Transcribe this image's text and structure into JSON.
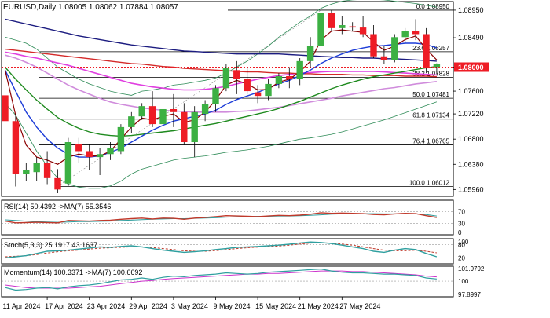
{
  "chart_data": {
    "type": "candlestick",
    "symbol": "EURUSD",
    "timeframe": "Daily",
    "header_text": "EURUSD,Daily  1.08005 1.08062 1.07884 1.08057",
    "candles": [
      [
        1.0753,
        1.0768,
        1.069,
        1.071
      ],
      [
        1.071,
        1.0722,
        1.0601,
        1.0622
      ],
      [
        1.0622,
        1.064,
        1.061,
        1.0628
      ],
      [
        1.0625,
        1.065,
        1.061,
        1.064
      ],
      [
        1.064,
        1.066,
        1.0605,
        1.0615
      ],
      [
        1.0615,
        1.063,
        1.059,
        1.0596
      ],
      [
        1.0606,
        1.0682,
        1.0601,
        1.0675
      ],
      [
        1.0672,
        1.0682,
        1.064,
        1.066
      ],
      [
        1.066,
        1.0672,
        1.0628,
        1.065
      ],
      [
        1.065,
        1.0665,
        1.062,
        1.0655
      ],
      [
        1.0655,
        1.0675,
        1.0645,
        1.0665
      ],
      [
        1.066,
        1.0705,
        1.0655,
        1.07
      ],
      [
        1.07,
        1.0725,
        1.069,
        1.0718
      ],
      [
        1.0718,
        1.074,
        1.0712,
        1.0735
      ],
      [
        1.0735,
        1.076,
        1.07,
        1.0705
      ],
      [
        1.0705,
        1.0735,
        1.0675,
        1.073
      ],
      [
        1.073,
        1.0755,
        1.07,
        1.0725
      ],
      [
        1.0725,
        1.074,
        1.067,
        1.0675
      ],
      [
        1.0675,
        1.0735,
        1.065,
        1.0725
      ],
      [
        1.0722,
        1.0745,
        1.071,
        1.0738
      ],
      [
        1.0738,
        1.077,
        1.0725,
        1.0765
      ],
      [
        1.0765,
        1.0805,
        1.076,
        1.0798
      ],
      [
        1.0795,
        1.081,
        1.0755,
        1.078
      ],
      [
        1.078,
        1.08,
        1.0755,
        1.076
      ],
      [
        1.0758,
        1.077,
        1.074,
        1.0752
      ],
      [
        1.0752,
        1.078,
        1.0745,
        1.0772
      ],
      [
        1.0772,
        1.079,
        1.0765,
        1.0785
      ],
      [
        1.0785,
        1.08,
        1.0765,
        1.078
      ],
      [
        1.078,
        1.0815,
        1.077,
        1.081
      ],
      [
        1.081,
        1.085,
        1.08,
        1.0835
      ],
      [
        1.0835,
        1.09,
        1.0825,
        1.089
      ],
      [
        1.089,
        1.0895,
        1.086,
        1.0865
      ],
      [
        1.0865,
        1.0885,
        1.0855,
        1.087
      ],
      [
        1.0868,
        1.0875,
        1.086,
        1.0866
      ],
      [
        1.0866,
        1.0885,
        1.085,
        1.0855
      ],
      [
        1.0855,
        1.087,
        1.0815,
        1.0818
      ],
      [
        1.0818,
        1.0835,
        1.0805,
        1.0812
      ],
      [
        1.0812,
        1.0855,
        1.0808,
        1.085
      ],
      [
        1.085,
        1.0865,
        1.084,
        1.086
      ],
      [
        1.086,
        1.088,
        1.0845,
        1.0855
      ],
      [
        1.0855,
        1.0865,
        1.079,
        1.0798
      ],
      [
        1.08005,
        1.08062,
        1.07884,
        1.08057
      ]
    ],
    "price_axis": [
      "1.08950",
      "1.08490",
      "1.08000",
      "1.07600",
      "1.07220",
      "1.06800",
      "1.06380",
      "1.05960"
    ],
    "current_price": "1.08000",
    "fib_levels": [
      {
        "label": "0.0 1.08950",
        "price": 1.0895
      },
      {
        "label": "23.6 1.08257",
        "price": 1.08257
      },
      {
        "label": "38.2 1.07828",
        "price": 1.07828
      },
      {
        "label": "50.0 1.07481",
        "price": 1.07481
      },
      {
        "label": "61.8 1.07134",
        "price": 1.07134
      },
      {
        "label": "76.4 1.06705",
        "price": 1.06705
      },
      {
        "label": "100.0 1.06012",
        "price": 1.06012
      }
    ],
    "date_labels": [
      {
        "label": "11 Apr 2024",
        "index": 0
      },
      {
        "label": "17 Apr 2024",
        "index": 4
      },
      {
        "label": "23 Apr 2024",
        "index": 8
      },
      {
        "label": "29 Apr 2024",
        "index": 12
      },
      {
        "label": "3 May 2024",
        "index": 16
      },
      {
        "label": "9 May 2024",
        "index": 20
      },
      {
        "label": "15 May 2024",
        "index": 24
      },
      {
        "label": "21 May 2024",
        "index": 28
      },
      {
        "label": "27 May 2024",
        "index": 32
      }
    ],
    "ma_lines": {
      "navy": [
        1.088,
        1.0876,
        1.0872,
        1.0868,
        1.0864,
        1.086,
        1.0856,
        1.0852,
        1.0849,
        1.0846,
        1.0843,
        1.084,
        1.0837,
        1.0835,
        1.0833,
        1.0831,
        1.0829,
        1.0827,
        1.0826,
        1.0825,
        1.0824,
        1.0823,
        1.0822,
        1.0822,
        1.0822,
        1.0822,
        1.0822,
        1.0821,
        1.082,
        1.0819,
        1.0818,
        1.0817,
        1.0816,
        1.0816,
        1.0815,
        1.0815,
        1.0814,
        1.0814,
        1.0813,
        1.0812,
        1.0811,
        1.081
      ],
      "red": [
        1.083,
        1.0828,
        1.0826,
        1.0824,
        1.0822,
        1.082,
        1.0818,
        1.0816,
        1.0814,
        1.0812,
        1.081,
        1.0808,
        1.0806,
        1.0805,
        1.0803,
        1.0801,
        1.08,
        1.0798,
        1.0797,
        1.0796,
        1.0795,
        1.0794,
        1.0793,
        1.0792,
        1.0792,
        1.0791,
        1.079,
        1.079,
        1.0789,
        1.0789,
        1.0788,
        1.0788,
        1.0788,
        1.0787,
        1.0787,
        1.0786,
        1.0786,
        1.0786,
        1.0785,
        1.0785,
        1.0785,
        1.0784
      ],
      "magenta": [
        1.0825,
        1.0822,
        1.0818,
        1.0815,
        1.0811,
        1.0807,
        1.0803,
        1.0798,
        1.0793,
        1.0788,
        1.0783,
        1.0778,
        1.0773,
        1.077,
        1.0767,
        1.0765,
        1.0763,
        1.0762,
        1.0762,
        1.0763,
        1.0765,
        1.0768,
        1.0772,
        1.0776,
        1.078,
        1.0783,
        1.0786,
        1.0788,
        1.079,
        1.0791,
        1.0792,
        1.0793,
        1.0793,
        1.0793,
        1.0793,
        1.0793,
        1.0792,
        1.0791,
        1.079,
        1.0789,
        1.0788,
        1.0787
      ],
      "violet": [
        1.082,
        1.0815,
        1.0808,
        1.08,
        1.079,
        1.078,
        1.077,
        1.0762,
        1.0755,
        1.0748,
        1.0742,
        1.0738,
        1.0735,
        1.0732,
        1.073,
        1.0728,
        1.0727,
        1.0726,
        1.0725,
        1.0725,
        1.0725,
        1.0725,
        1.0726,
        1.0727,
        1.0729,
        1.0731,
        1.0733,
        1.0736,
        1.0739,
        1.0742,
        1.0745,
        1.0748,
        1.0752,
        1.0755,
        1.0758,
        1.0761,
        1.0764,
        1.0766,
        1.0769,
        1.0772,
        1.0774,
        1.0776
      ],
      "green": [
        1.08,
        1.078,
        1.0762,
        1.0745,
        1.073,
        1.0716,
        1.0706,
        1.0698,
        1.0692,
        1.0688,
        1.0686,
        1.0685,
        1.0686,
        1.0688,
        1.069,
        1.0692,
        1.0694,
        1.0697,
        1.07,
        1.0703,
        1.0706,
        1.071,
        1.0714,
        1.0718,
        1.0722,
        1.0726,
        1.0731,
        1.0737,
        1.0743,
        1.075,
        1.0757,
        1.0764,
        1.077,
        1.0775,
        1.078,
        1.0784,
        1.0787,
        1.079,
        1.0793,
        1.0796,
        1.0799,
        1.0801
      ],
      "blue": [
        1.0795,
        1.076,
        1.0725,
        1.07,
        1.068,
        1.0665,
        1.0655,
        1.065,
        1.065,
        1.0652,
        1.0658,
        1.0665,
        1.0675,
        1.0685,
        1.0695,
        1.0703,
        1.071,
        1.0714,
        1.0718,
        1.0722,
        1.0728,
        1.0738,
        1.0746,
        1.0752,
        1.0758,
        1.0765,
        1.0772,
        1.0778,
        1.0786,
        1.0795,
        1.0806,
        1.0815,
        1.0822,
        1.0828,
        1.0832,
        1.0835,
        1.0836,
        1.0838,
        1.084,
        1.084,
        1.0838,
        1.0832
      ],
      "maroon": [
        1.0795,
        1.072,
        1.067,
        1.065,
        1.0645,
        1.0638,
        1.065,
        1.0655,
        1.0652,
        1.0652,
        1.066,
        1.068,
        1.07,
        1.0715,
        1.0712,
        1.0718,
        1.0722,
        1.0708,
        1.0712,
        1.0725,
        1.0745,
        1.077,
        1.0778,
        1.0772,
        1.0762,
        1.0763,
        1.0775,
        1.078,
        1.0792,
        1.081,
        1.0845,
        1.086,
        1.0862,
        1.086,
        1.0858,
        1.0842,
        1.0828,
        1.0835,
        1.0846,
        1.0852,
        1.083,
        1.0812
      ],
      "bb_upper": [
        1.085,
        1.0845,
        1.084,
        1.083,
        1.0815,
        1.08,
        1.079,
        1.078,
        1.0772,
        1.0766,
        1.076,
        1.0756,
        1.0753,
        1.076,
        1.0762,
        1.0765,
        1.077,
        1.0772,
        1.0775,
        1.0778,
        1.0782,
        1.079,
        1.08,
        1.081,
        1.0822,
        1.0835,
        1.085,
        1.0862,
        1.0875,
        1.0885,
        1.0898,
        1.0905,
        1.091,
        1.0912,
        1.0913,
        1.0913,
        1.0912,
        1.091,
        1.0908,
        1.0906,
        1.0903,
        1.09
      ],
      "bb_lower": [
        1.074,
        1.072,
        1.069,
        1.066,
        1.0635,
        1.0615,
        1.0605,
        1.06,
        1.0598,
        1.0598,
        1.0602,
        1.061,
        1.0622,
        1.063,
        1.0635,
        1.064,
        1.0645,
        1.0648,
        1.065,
        1.0652,
        1.0655,
        1.0658,
        1.066,
        1.0662,
        1.0665,
        1.0668,
        1.0672,
        1.0676,
        1.068,
        1.0682,
        1.0685,
        1.0688,
        1.0692,
        1.0697,
        1.0702,
        1.0707,
        1.0712,
        1.0718,
        1.0724,
        1.073,
        1.0736,
        1.0742
      ]
    },
    "rsi": {
      "label": "RSI(14) 50.4392  ->MA(7) 55.3546",
      "ticks": [
        "70",
        "30",
        "0"
      ],
      "levels": [
        70,
        30
      ],
      "values": [
        38,
        32,
        33,
        34,
        33,
        32,
        40,
        39,
        38,
        40,
        41,
        44,
        46,
        48,
        45,
        48,
        47,
        44,
        48,
        50,
        53,
        56,
        55,
        54,
        53,
        55,
        57,
        56,
        58,
        61,
        66,
        64,
        65,
        64,
        63,
        60,
        59,
        62,
        64,
        63,
        56,
        50
      ],
      "ma": [
        42,
        40,
        38,
        36,
        35,
        34,
        35,
        36,
        36,
        37,
        38,
        40,
        41,
        43,
        44,
        45,
        46,
        46,
        47,
        48,
        49,
        51,
        52,
        53,
        54,
        54,
        55,
        55,
        56,
        57,
        59,
        61,
        62,
        63,
        63,
        63,
        62,
        62,
        62,
        62,
        60,
        55
      ]
    },
    "stoch": {
      "label": "Stoch(5,3,3) 25.1917 43.1637",
      "ticks": [
        "100",
        "80",
        "20"
      ],
      "levels": [
        80,
        20
      ],
      "k": [
        20,
        25,
        30,
        40,
        50,
        52,
        55,
        60,
        65,
        70,
        68,
        72,
        75,
        70,
        62,
        55,
        50,
        45,
        48,
        52,
        58,
        62,
        68,
        70,
        72,
        75,
        78,
        82,
        88,
        92,
        90,
        85,
        78,
        70,
        62,
        50,
        45,
        55,
        62,
        58,
        40,
        25
      ],
      "d": [
        25,
        27,
        30,
        35,
        42,
        48,
        52,
        55,
        60,
        64,
        66,
        68,
        70,
        70,
        67,
        62,
        58,
        52,
        50,
        50,
        53,
        57,
        62,
        66,
        69,
        72,
        74,
        78,
        83,
        87,
        89,
        87,
        83,
        78,
        70,
        62,
        55,
        52,
        52,
        55,
        50,
        43
      ]
    },
    "momentum": {
      "label": "Momentum(14) 100.3371  ->MA(7) 100.6692",
      "ticks": [
        "101.9792",
        "100",
        "97.8997"
      ],
      "level": 100,
      "values": [
        99.0,
        98.6,
        98.7,
        98.9,
        99.0,
        98.8,
        99.1,
        99.3,
        99.4,
        99.6,
        99.9,
        100.2,
        100.3,
        100.5,
        100.3,
        100.6,
        100.8,
        100.7,
        100.9,
        101.0,
        101.1,
        101.3,
        101.2,
        101.1,
        101.2,
        101.4,
        101.5,
        101.6,
        101.7,
        101.8,
        101.9,
        101.6,
        101.4,
        101.3,
        101.3,
        101.2,
        101.1,
        101.1,
        101.0,
        100.9,
        100.5,
        100.34
      ],
      "ma": [
        99.4,
        99.2,
        99.0,
        98.9,
        98.9,
        98.9,
        98.9,
        99.0,
        99.1,
        99.2,
        99.4,
        99.6,
        99.8,
        100.0,
        100.1,
        100.3,
        100.4,
        100.5,
        100.6,
        100.7,
        100.8,
        100.9,
        101.0,
        101.1,
        101.1,
        101.2,
        101.2,
        101.3,
        101.4,
        101.5,
        101.6,
        101.6,
        101.6,
        101.5,
        101.5,
        101.4,
        101.3,
        101.2,
        101.1,
        101.0,
        100.8,
        100.67
      ]
    },
    "colors": {
      "bull": "#3cb043",
      "bear": "#ee1c25",
      "navy": "#1c1c80",
      "red": "#d42a2a",
      "magenta": "#e040e0",
      "violet": "#d08cdc",
      "green": "#1e8a1e",
      "blue": "#1c3cd8",
      "maroon": "#8b0000",
      "bollinger": "#2e8b57",
      "fib": "#000000",
      "rsi_line": "#c0392b",
      "rsi_ma": "#2f9f9f",
      "stoch_k": "#2f9f9f",
      "stoch_d": "#c0392b",
      "mom_line": "#2f9f9f",
      "mom_ma": "#cc33cc",
      "current_price_bg": "#ee1c25"
    }
  }
}
